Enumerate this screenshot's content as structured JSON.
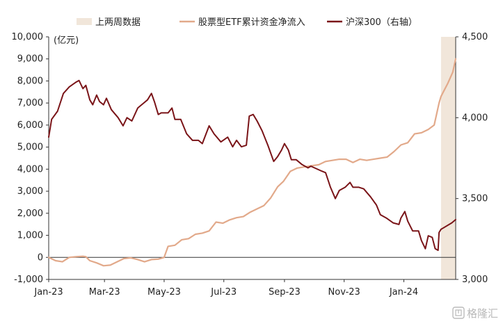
{
  "chart_data": {
    "type": "line",
    "legend_position": "top",
    "legend": [
      {
        "label": "上两周数据",
        "kind": "box",
        "color": "#f1e6da"
      },
      {
        "label": "股票型ETF累计资金净流入",
        "kind": "line",
        "color": "#e2a98a"
      },
      {
        "label": "沪深300（右轴）",
        "kind": "line",
        "color": "#7a1418"
      }
    ],
    "y_left": {
      "unit_label": "(亿元)",
      "min": -1000,
      "max": 10000,
      "ticks": [
        -1000,
        0,
        1000,
        2000,
        3000,
        4000,
        5000,
        6000,
        7000,
        8000,
        9000,
        10000
      ],
      "tick_labels": [
        "-1,000",
        "0",
        "1,000",
        "2,000",
        "3,000",
        "4,000",
        "5,000",
        "6,000",
        "7,000",
        "8,000",
        "9,000",
        "10,000"
      ]
    },
    "y_right": {
      "min": 3000,
      "max": 4500,
      "ticks": [
        3000,
        3500,
        4000,
        4500
      ],
      "tick_labels": [
        "3,000",
        "3,500",
        "4,000",
        "4,500"
      ]
    },
    "x_axis": {
      "start": "2023-01-03",
      "end": "2024-02-23",
      "ticks": [
        {
          "date": "2023-01-03",
          "label": "Jan-23"
        },
        {
          "date": "2023-03-01",
          "label": "Mar-23"
        },
        {
          "date": "2023-05-01",
          "label": "May-23"
        },
        {
          "date": "2023-07-01",
          "label": "Jul-23"
        },
        {
          "date": "2023-09-01",
          "label": "Sep-23"
        },
        {
          "date": "2023-11-01",
          "label": "Nov-23"
        },
        {
          "date": "2024-01-01",
          "label": "Jan-24"
        }
      ]
    },
    "highlight_period": {
      "label": "上两周数据",
      "start": "2024-02-08",
      "end": "2024-02-23"
    },
    "series": [
      {
        "name": "股票型ETF累计资金净流入",
        "axis": "left",
        "color": "#e2a98a",
        "points": [
          [
            "2023-01-03",
            0
          ],
          [
            "2023-01-10",
            -150
          ],
          [
            "2023-01-17",
            -200
          ],
          [
            "2023-01-24",
            0
          ],
          [
            "2023-01-31",
            30
          ],
          [
            "2023-02-07",
            50
          ],
          [
            "2023-02-10",
            30
          ],
          [
            "2023-02-14",
            -150
          ],
          [
            "2023-02-21",
            -250
          ],
          [
            "2023-02-28",
            -380
          ],
          [
            "2023-03-07",
            -350
          ],
          [
            "2023-03-14",
            -200
          ],
          [
            "2023-03-21",
            -50
          ],
          [
            "2023-03-28",
            -20
          ],
          [
            "2023-04-04",
            -100
          ],
          [
            "2023-04-11",
            -200
          ],
          [
            "2023-04-18",
            -100
          ],
          [
            "2023-04-25",
            -80
          ],
          [
            "2023-05-01",
            0
          ],
          [
            "2023-05-05",
            500
          ],
          [
            "2023-05-12",
            550
          ],
          [
            "2023-05-19",
            800
          ],
          [
            "2023-05-26",
            850
          ],
          [
            "2023-06-02",
            1050
          ],
          [
            "2023-06-09",
            1100
          ],
          [
            "2023-06-16",
            1200
          ],
          [
            "2023-06-23",
            1600
          ],
          [
            "2023-06-30",
            1550
          ],
          [
            "2023-07-07",
            1700
          ],
          [
            "2023-07-14",
            1800
          ],
          [
            "2023-07-21",
            1850
          ],
          [
            "2023-07-28",
            2050
          ],
          [
            "2023-08-04",
            2200
          ],
          [
            "2023-08-11",
            2350
          ],
          [
            "2023-08-18",
            2700
          ],
          [
            "2023-08-25",
            3200
          ],
          [
            "2023-08-31",
            3450
          ],
          [
            "2023-09-07",
            3900
          ],
          [
            "2023-09-14",
            4050
          ],
          [
            "2023-09-21",
            4100
          ],
          [
            "2023-09-28",
            4150
          ],
          [
            "2023-10-06",
            4200
          ],
          [
            "2023-10-13",
            4350
          ],
          [
            "2023-10-20",
            4400
          ],
          [
            "2023-10-27",
            4450
          ],
          [
            "2023-11-03",
            4450
          ],
          [
            "2023-11-10",
            4300
          ],
          [
            "2023-11-17",
            4450
          ],
          [
            "2023-11-24",
            4400
          ],
          [
            "2023-12-01",
            4450
          ],
          [
            "2023-12-08",
            4500
          ],
          [
            "2023-12-15",
            4550
          ],
          [
            "2023-12-22",
            4800
          ],
          [
            "2023-12-29",
            5100
          ],
          [
            "2024-01-05",
            5200
          ],
          [
            "2024-01-12",
            5600
          ],
          [
            "2024-01-19",
            5650
          ],
          [
            "2024-01-26",
            5800
          ],
          [
            "2024-02-01",
            6000
          ],
          [
            "2024-02-06",
            7000
          ],
          [
            "2024-02-08",
            7300
          ],
          [
            "2024-02-15",
            7900
          ],
          [
            "2024-02-20",
            8400
          ],
          [
            "2024-02-23",
            9000
          ]
        ]
      },
      {
        "name": "沪深300（右轴）",
        "axis": "right",
        "color": "#7a1418",
        "points": [
          [
            "2023-01-03",
            3880
          ],
          [
            "2023-01-06",
            3990
          ],
          [
            "2023-01-12",
            4040
          ],
          [
            "2023-01-18",
            4150
          ],
          [
            "2023-01-24",
            4190
          ],
          [
            "2023-01-31",
            4220
          ],
          [
            "2023-02-03",
            4230
          ],
          [
            "2023-02-07",
            4180
          ],
          [
            "2023-02-10",
            4200
          ],
          [
            "2023-02-14",
            4110
          ],
          [
            "2023-02-17",
            4080
          ],
          [
            "2023-02-21",
            4140
          ],
          [
            "2023-02-24",
            4100
          ],
          [
            "2023-02-28",
            4080
          ],
          [
            "2023-03-03",
            4120
          ],
          [
            "2023-03-08",
            4050
          ],
          [
            "2023-03-15",
            4000
          ],
          [
            "2023-03-20",
            3950
          ],
          [
            "2023-03-24",
            4000
          ],
          [
            "2023-03-29",
            3980
          ],
          [
            "2023-04-04",
            4060
          ],
          [
            "2023-04-10",
            4090
          ],
          [
            "2023-04-14",
            4110
          ],
          [
            "2023-04-18",
            4150
          ],
          [
            "2023-04-21",
            4100
          ],
          [
            "2023-04-25",
            4020
          ],
          [
            "2023-04-28",
            4030
          ],
          [
            "2023-05-05",
            4030
          ],
          [
            "2023-05-09",
            4060
          ],
          [
            "2023-05-12",
            3990
          ],
          [
            "2023-05-18",
            3990
          ],
          [
            "2023-05-24",
            3900
          ],
          [
            "2023-05-30",
            3860
          ],
          [
            "2023-06-05",
            3860
          ],
          [
            "2023-06-09",
            3840
          ],
          [
            "2023-06-16",
            3950
          ],
          [
            "2023-06-21",
            3900
          ],
          [
            "2023-06-28",
            3850
          ],
          [
            "2023-07-05",
            3880
          ],
          [
            "2023-07-10",
            3820
          ],
          [
            "2023-07-14",
            3860
          ],
          [
            "2023-07-19",
            3820
          ],
          [
            "2023-07-24",
            3830
          ],
          [
            "2023-07-27",
            4010
          ],
          [
            "2023-07-31",
            4020
          ],
          [
            "2023-08-04",
            3980
          ],
          [
            "2023-08-09",
            3920
          ],
          [
            "2023-08-15",
            3830
          ],
          [
            "2023-08-21",
            3730
          ],
          [
            "2023-08-25",
            3760
          ],
          [
            "2023-08-29",
            3800
          ],
          [
            "2023-09-01",
            3840
          ],
          [
            "2023-09-05",
            3800
          ],
          [
            "2023-09-08",
            3740
          ],
          [
            "2023-09-13",
            3740
          ],
          [
            "2023-09-19",
            3710
          ],
          [
            "2023-09-25",
            3690
          ],
          [
            "2023-09-28",
            3700
          ],
          [
            "2023-10-09",
            3670
          ],
          [
            "2023-10-13",
            3660
          ],
          [
            "2023-10-18",
            3570
          ],
          [
            "2023-10-23",
            3500
          ],
          [
            "2023-10-27",
            3550
          ],
          [
            "2023-11-02",
            3570
          ],
          [
            "2023-11-07",
            3600
          ],
          [
            "2023-11-10",
            3570
          ],
          [
            "2023-11-16",
            3570
          ],
          [
            "2023-11-21",
            3560
          ],
          [
            "2023-11-28",
            3510
          ],
          [
            "2023-12-04",
            3460
          ],
          [
            "2023-12-08",
            3400
          ],
          [
            "2023-12-14",
            3380
          ],
          [
            "2023-12-21",
            3350
          ],
          [
            "2023-12-27",
            3340
          ],
          [
            "2023-12-29",
            3380
          ],
          [
            "2024-01-02",
            3420
          ],
          [
            "2024-01-05",
            3360
          ],
          [
            "2024-01-10",
            3300
          ],
          [
            "2024-01-16",
            3300
          ],
          [
            "2024-01-19",
            3240
          ],
          [
            "2024-01-23",
            3190
          ],
          [
            "2024-01-26",
            3270
          ],
          [
            "2024-01-30",
            3260
          ],
          [
            "2024-02-02",
            3190
          ],
          [
            "2024-02-05",
            3180
          ],
          [
            "2024-02-06",
            3290
          ],
          [
            "2024-02-08",
            3310
          ],
          [
            "2024-02-19",
            3350
          ],
          [
            "2024-02-21",
            3360
          ],
          [
            "2024-02-23",
            3370
          ]
        ]
      }
    ]
  },
  "watermark": {
    "text": "格隆汇"
  }
}
